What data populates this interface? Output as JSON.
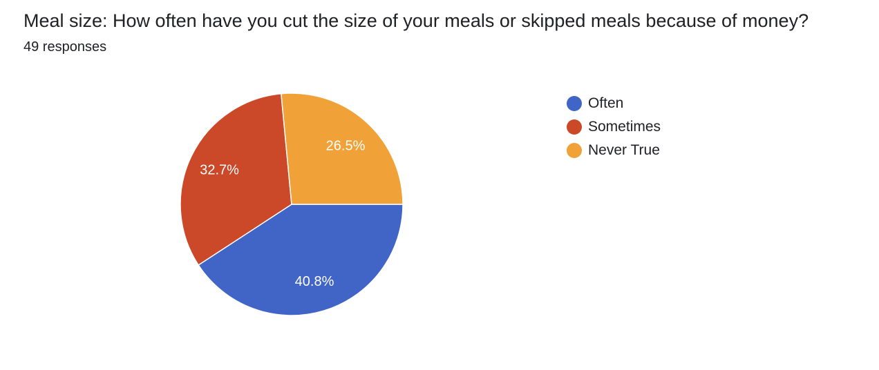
{
  "header": {
    "title": "Meal size: How often have you cut the size of your meals or skipped meals because of money?",
    "responses": "49 responses"
  },
  "chart_data": {
    "type": "pie",
    "title": "Meal size: How often have you cut the size of your meals or skipped meals because of money?",
    "subtitle": "49 responses",
    "categories": [
      "Often",
      "Sometimes",
      "Never True"
    ],
    "values": [
      40.8,
      32.7,
      26.5
    ],
    "labels": [
      "40.8%",
      "32.7%",
      "26.5%"
    ],
    "colors": [
      "#4065c6",
      "#cb4828",
      "#f0a137"
    ],
    "legend_position": "right"
  }
}
